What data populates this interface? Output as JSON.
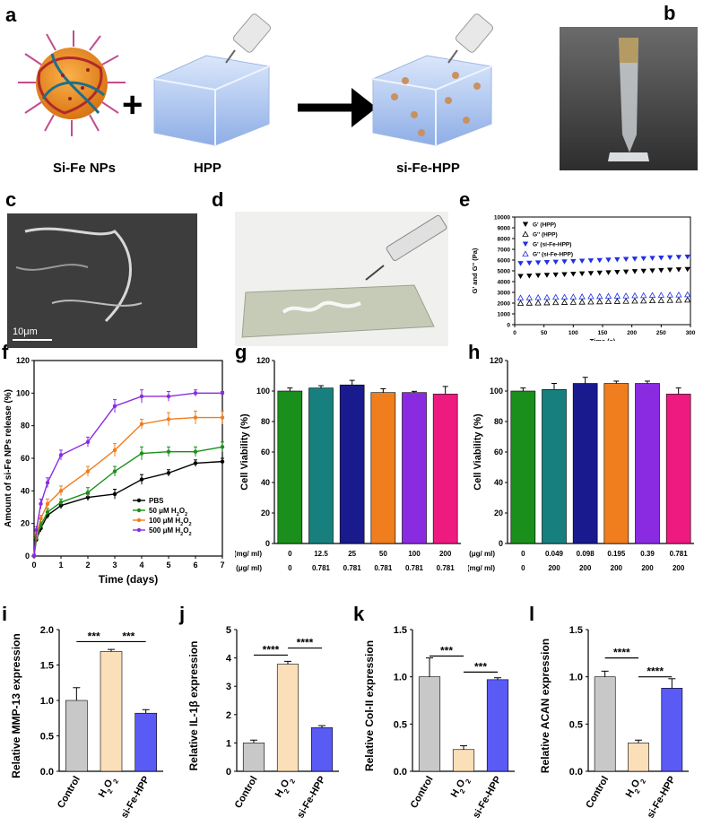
{
  "panels": {
    "a": {
      "label": "a",
      "nps_label": "Si-Fe NPs",
      "hpp_label": "HPP",
      "product_label": "si-Fe-HPP",
      "plus": "+"
    },
    "b": {
      "label": "b"
    },
    "c": {
      "label": "c",
      "scalebar": "10μm"
    },
    "d": {
      "label": "d"
    },
    "e": {
      "label": "e"
    },
    "f": {
      "label": "f"
    },
    "g": {
      "label": "g"
    },
    "h": {
      "label": "h"
    },
    "i": {
      "label": "i"
    },
    "j": {
      "label": "j"
    },
    "k": {
      "label": "k"
    },
    "l": {
      "label": "l"
    }
  },
  "colors": {
    "black": "#000000",
    "blue": "#1f2fe6",
    "green": "#1b8f1b",
    "orange": "#f07d1e",
    "purple": "#8a2be2",
    "teal": "#17807e",
    "navy": "#1a1a8f",
    "pink": "#ef1a80",
    "grey": "#c8c8c8",
    "peach": "#fbdfb8",
    "bluebar": "#5a5af5"
  },
  "chart_data": [
    {
      "id": "e",
      "type": "scatter",
      "xlabel": "Time (s)",
      "ylabel": "G' and G'' (Pa)",
      "xlim": [
        0,
        300
      ],
      "ylim": [
        0,
        10000
      ],
      "xticks": [
        0,
        50,
        100,
        150,
        200,
        250,
        300
      ],
      "yticks": [
        0,
        1000,
        2000,
        3000,
        4000,
        5000,
        6000,
        7000,
        8000,
        9000,
        10000
      ],
      "legend_position": "top-left",
      "x": [
        10,
        25,
        40,
        55,
        70,
        85,
        100,
        115,
        130,
        145,
        160,
        175,
        190,
        205,
        220,
        235,
        250,
        265,
        280,
        295
      ],
      "series": [
        {
          "name": "G' (HPP)",
          "marker": "filled-down-triangle",
          "color": "#000000",
          "y0": 4500,
          "y1": 5150
        },
        {
          "name": "G'' (HPP)",
          "marker": "open-up-triangle",
          "color": "#000000",
          "y0": 2000,
          "y1": 2300
        },
        {
          "name": "G' (si-Fe-HPP)",
          "marker": "filled-down-triangle",
          "color": "#1f2fe6",
          "y0": 5700,
          "y1": 6300
        },
        {
          "name": "G'' (si-Fe-HPP)",
          "marker": "open-up-triangle",
          "color": "#1f2fe6",
          "y0": 2500,
          "y1": 2800
        }
      ]
    },
    {
      "id": "f",
      "type": "line",
      "xlabel": "Time (days)",
      "ylabel": "Amount of si-Fe NPs release (%)",
      "xlim": [
        0,
        7
      ],
      "ylim": [
        0,
        120
      ],
      "xticks": [
        0,
        1,
        2,
        3,
        4,
        5,
        6,
        7
      ],
      "yticks": [
        0,
        20,
        40,
        60,
        80,
        100,
        120
      ],
      "legend_position": "bottom-right",
      "x": [
        0,
        0.083,
        0.25,
        0.5,
        1,
        2,
        3,
        4,
        5,
        6,
        7
      ],
      "series": [
        {
          "name": "PBS",
          "color": "#000000",
          "values": [
            0,
            10,
            17,
            25,
            31,
            36,
            38,
            47,
            51,
            57,
            58
          ],
          "err": [
            1,
            1,
            2,
            2,
            2,
            2,
            3,
            3,
            2,
            2,
            2
          ]
        },
        {
          "name": "50 μM H2O2",
          "color": "#1b8f1b",
          "values": [
            0,
            11,
            19,
            27,
            33,
            39,
            52,
            63,
            64,
            64,
            67
          ],
          "err": [
            1,
            1,
            2,
            2,
            2,
            3,
            3,
            4,
            3,
            3,
            3
          ]
        },
        {
          "name": "100 μM H2O2",
          "color": "#f07d1e",
          "values": [
            0,
            13,
            23,
            32,
            40,
            52,
            65,
            81,
            84,
            85,
            85
          ],
          "err": [
            1,
            2,
            2,
            3,
            3,
            3,
            4,
            3,
            4,
            4,
            4
          ]
        },
        {
          "name": "500 μM H2O2",
          "color": "#8a2be2",
          "values": [
            0,
            16,
            32,
            45,
            62,
            70,
            92,
            98,
            98,
            100,
            100
          ],
          "err": [
            1,
            2,
            3,
            3,
            3,
            3,
            4,
            4,
            3,
            2,
            1
          ]
        }
      ]
    },
    {
      "id": "g",
      "type": "bar",
      "ylabel": "Cell Viability (%)",
      "ylim": [
        0,
        120
      ],
      "yticks": [
        0,
        20,
        40,
        60,
        80,
        100,
        120
      ],
      "row1_label": "HPP (mg/ ml)",
      "row2_label": "Fe (μg/ ml)",
      "row1": [
        "0",
        "12.5",
        "25",
        "50",
        "100",
        "200"
      ],
      "row2": [
        "0",
        "0.781",
        "0.781",
        "0.781",
        "0.781",
        "0.781"
      ],
      "values": [
        100,
        102,
        104,
        99,
        99,
        98
      ],
      "err": [
        2,
        1.5,
        3,
        2.5,
        0.8,
        5
      ],
      "colors": [
        "#1b8f1b",
        "#17807e",
        "#1a1a8f",
        "#f07d1e",
        "#8a2be2",
        "#ef1a80"
      ]
    },
    {
      "id": "h",
      "type": "bar",
      "ylabel": "Cell Viability (%)",
      "ylim": [
        0,
        120
      ],
      "yticks": [
        0,
        20,
        40,
        60,
        80,
        100,
        120
      ],
      "row1_label": "Fe (μg/ ml)",
      "row2_label": "HPP (mg/ ml)",
      "row1": [
        "0",
        "0.049",
        "0.098",
        "0.195",
        "0.39",
        "0.781"
      ],
      "row2": [
        "0",
        "200",
        "200",
        "200",
        "200",
        "200"
      ],
      "values": [
        100,
        101,
        105,
        105,
        105,
        98
      ],
      "err": [
        2,
        4,
        4,
        1.5,
        1.5,
        4
      ],
      "colors": [
        "#1b8f1b",
        "#17807e",
        "#1a1a8f",
        "#f07d1e",
        "#8a2be2",
        "#ef1a80"
      ]
    },
    {
      "id": "i",
      "type": "bar",
      "ylabel": "Relative MMP-13 expression",
      "ylim": [
        0,
        2.0
      ],
      "yticks": [
        "0.0",
        "0.5",
        "1.0",
        "1.5",
        "2.0"
      ],
      "categories": [
        "Control",
        "H2O2",
        "si-Fe-HPP"
      ],
      "values": [
        1.0,
        1.69,
        0.82
      ],
      "err": [
        0.18,
        0.03,
        0.05
      ],
      "sig": [
        {
          "from": 0,
          "to": 1,
          "text": "***",
          "y": 1.83
        },
        {
          "from": 1,
          "to": 2,
          "text": "***",
          "y": 1.83
        }
      ]
    },
    {
      "id": "j",
      "type": "bar",
      "ylabel": "Relative IL-1β expression",
      "ylim": [
        0,
        5
      ],
      "yticks": [
        "0",
        "1",
        "2",
        "3",
        "4",
        "5"
      ],
      "categories": [
        "Control",
        "H2O2",
        "si-Fe-HPP"
      ],
      "values": [
        1.0,
        3.78,
        1.54
      ],
      "err": [
        0.1,
        0.1,
        0.07
      ],
      "sig": [
        {
          "from": 0,
          "to": 1,
          "text": "****",
          "y": 4.1
        },
        {
          "from": 1,
          "to": 2,
          "text": "****",
          "y": 4.35
        }
      ]
    },
    {
      "id": "k",
      "type": "bar",
      "ylabel": "Relative Col-II expression",
      "ylim": [
        0,
        1.5
      ],
      "yticks": [
        "0.0",
        "0.5",
        "1.0",
        "1.5"
      ],
      "categories": [
        "Control",
        "H2O2",
        "si-Fe-HPP"
      ],
      "values": [
        1.0,
        0.23,
        0.97
      ],
      "err": [
        0.2,
        0.04,
        0.02
      ],
      "sig": [
        {
          "from": 0,
          "to": 1,
          "text": "***",
          "y": 1.22
        },
        {
          "from": 1,
          "to": 2,
          "text": "***",
          "y": 1.05
        }
      ]
    },
    {
      "id": "l",
      "type": "bar",
      "ylabel": "Relative ACAN expression",
      "ylim": [
        0,
        1.5
      ],
      "yticks": [
        "0.0",
        "0.5",
        "1.0",
        "1.5"
      ],
      "categories": [
        "Control",
        "H2O2",
        "si-Fe-HPP"
      ],
      "values": [
        1.0,
        0.3,
        0.88
      ],
      "err": [
        0.06,
        0.03,
        0.1
      ],
      "sig": [
        {
          "from": 0,
          "to": 1,
          "text": "****",
          "y": 1.2
        },
        {
          "from": 1,
          "to": 2,
          "text": "****",
          "y": 1.0
        }
      ]
    }
  ]
}
